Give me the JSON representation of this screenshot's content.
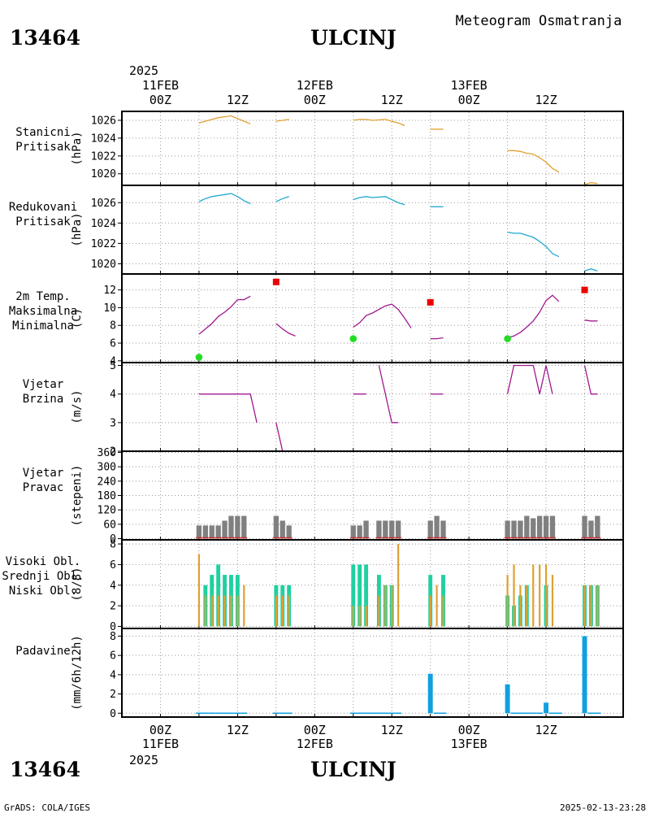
{
  "header": {
    "station_id": "13464",
    "station_name": "ULCINJ",
    "product": "Meteogram Osmatranja"
  },
  "footer": {
    "left_credit": "GrADS: COLA/IGES",
    "timestamp": "2025-02-13-23:28",
    "station_id": "13464",
    "station_name": "ULCINJ"
  },
  "time_axis": {
    "year": "2025",
    "range_hours": [
      -6,
      72
    ],
    "day_labels": [
      {
        "hour": 0,
        "label": "11FEB"
      },
      {
        "hour": 24,
        "label": "12FEB"
      },
      {
        "hour": 48,
        "label": "13FEB"
      }
    ],
    "hour_ticks": [
      {
        "hour": 0,
        "label": "00Z"
      },
      {
        "hour": 12,
        "label": "12Z"
      },
      {
        "hour": 24,
        "label": "00Z"
      },
      {
        "hour": 36,
        "label": "12Z"
      },
      {
        "hour": 48,
        "label": "00Z"
      },
      {
        "hour": 60,
        "label": "12Z"
      }
    ]
  },
  "colors": {
    "station_pressure": "#e0a030",
    "reduced_pressure": "#20a8d0",
    "temperature": "#a01890",
    "tmax_marker": "#ee0000",
    "tmin_marker": "#22dd22",
    "wind": "#a01890",
    "wind_dir_bar": "#808080",
    "wind_dir_base": "#cc3333",
    "high_cloud": "#20d0a0",
    "low_cloud": "#e0a030",
    "precip": "#10a0e0",
    "grid": "#999999"
  },
  "chart_data": [
    {
      "id": "station_pressure",
      "type": "line",
      "labels": [
        "Stanicni",
        "Pritisak"
      ],
      "ylabel": "(hPa)",
      "ylim": [
        1018.7,
        1027
      ],
      "yticks": [
        1020,
        1022,
        1024,
        1026
      ],
      "series": [
        {
          "segments": [
            [
              [
                6,
                1025.7
              ],
              [
                7,
                1025.9
              ],
              [
                8,
                1026.1
              ],
              [
                9,
                1026.3
              ],
              [
                10,
                1026.4
              ],
              [
                11,
                1026.5
              ],
              [
                12,
                1026.2
              ],
              [
                13,
                1025.9
              ],
              [
                14,
                1025.6
              ]
            ],
            [
              [
                18,
                1025.9
              ],
              [
                19,
                1026.0
              ],
              [
                20,
                1026.1
              ]
            ],
            [
              [
                30,
                1026.0
              ],
              [
                31,
                1026.1
              ],
              [
                32,
                1026.1
              ],
              [
                33,
                1026.0
              ],
              [
                35,
                1026.1
              ],
              [
                36,
                1025.9
              ],
              [
                37,
                1025.7
              ],
              [
                38,
                1025.4
              ]
            ],
            [
              [
                42,
                1025.0
              ],
              [
                43,
                1025.0
              ],
              [
                44,
                1025.0
              ]
            ],
            [
              [
                54,
                1022.6
              ],
              [
                55,
                1022.6
              ],
              [
                56,
                1022.5
              ],
              [
                57,
                1022.3
              ],
              [
                58,
                1022.2
              ],
              [
                59,
                1021.8
              ],
              [
                60,
                1021.3
              ],
              [
                61,
                1020.6
              ],
              [
                62,
                1020.2
              ]
            ],
            [
              [
                66,
                1018.8
              ],
              [
                67,
                1019.0
              ],
              [
                68,
                1018.9
              ]
            ]
          ]
        }
      ]
    },
    {
      "id": "reduced_pressure",
      "type": "line",
      "labels": [
        "Redukovani",
        "Pritisak"
      ],
      "ylabel": "(hPa)",
      "ylim": [
        1019,
        1027.7
      ],
      "yticks": [
        1020,
        1022,
        1024,
        1026
      ],
      "series": [
        {
          "segments": [
            [
              [
                6,
                1026.1
              ],
              [
                7,
                1026.4
              ],
              [
                8,
                1026.6
              ],
              [
                9,
                1026.7
              ],
              [
                10,
                1026.8
              ],
              [
                11,
                1026.9
              ],
              [
                12,
                1026.6
              ],
              [
                13,
                1026.2
              ],
              [
                14,
                1025.9
              ]
            ],
            [
              [
                18,
                1026.1
              ],
              [
                19,
                1026.4
              ],
              [
                20,
                1026.6
              ]
            ],
            [
              [
                30,
                1026.3
              ],
              [
                31,
                1026.5
              ],
              [
                32,
                1026.6
              ],
              [
                33,
                1026.5
              ],
              [
                35,
                1026.6
              ],
              [
                36,
                1026.3
              ],
              [
                37,
                1026.0
              ],
              [
                38,
                1025.8
              ]
            ],
            [
              [
                42,
                1025.6
              ],
              [
                43,
                1025.6
              ],
              [
                44,
                1025.6
              ]
            ],
            [
              [
                54,
                1023.1
              ],
              [
                55,
                1023.0
              ],
              [
                56,
                1023.0
              ],
              [
                57,
                1022.8
              ],
              [
                58,
                1022.6
              ],
              [
                59,
                1022.2
              ],
              [
                60,
                1021.7
              ],
              [
                61,
                1021.0
              ],
              [
                62,
                1020.7
              ]
            ],
            [
              [
                66,
                1019.3
              ],
              [
                67,
                1019.5
              ],
              [
                68,
                1019.3
              ]
            ]
          ]
        }
      ]
    },
    {
      "id": "temperature",
      "type": "line",
      "labels": [
        "2m Temp.",
        "Maksimalna",
        "Minimalna"
      ],
      "ylabel": "(C)",
      "ylim": [
        3.8,
        13.8
      ],
      "yticks": [
        4,
        6,
        8,
        10,
        12
      ],
      "series": [
        {
          "segments": [
            [
              [
                6,
                7.0
              ],
              [
                7,
                7.6
              ],
              [
                8,
                8.2
              ],
              [
                9,
                9.0
              ],
              [
                10,
                9.5
              ],
              [
                11,
                10.1
              ],
              [
                12,
                10.9
              ],
              [
                13,
                10.9
              ],
              [
                14,
                11.3
              ]
            ],
            [
              [
                18,
                8.2
              ],
              [
                19,
                7.6
              ],
              [
                20,
                7.1
              ],
              [
                21,
                6.8
              ]
            ],
            [
              [
                30,
                7.8
              ],
              [
                31,
                8.3
              ],
              [
                32,
                9.1
              ],
              [
                33,
                9.4
              ],
              [
                35,
                10.2
              ],
              [
                36,
                10.4
              ],
              [
                37,
                9.8
              ],
              [
                38,
                8.8
              ],
              [
                39,
                7.7
              ]
            ],
            [
              [
                42,
                6.5
              ],
              [
                43,
                6.5
              ],
              [
                44,
                6.6
              ]
            ],
            [
              [
                54,
                6.6
              ],
              [
                55,
                6.8
              ],
              [
                56,
                7.2
              ],
              [
                57,
                7.8
              ],
              [
                58,
                8.5
              ],
              [
                59,
                9.5
              ],
              [
                60,
                10.8
              ],
              [
                61,
                11.4
              ],
              [
                62,
                10.7
              ]
            ],
            [
              [
                66,
                8.6
              ],
              [
                67,
                8.5
              ],
              [
                68,
                8.5
              ]
            ]
          ]
        }
      ],
      "tmax": [
        [
          18,
          12.9
        ],
        [
          42,
          10.6
        ],
        [
          66,
          12.0
        ]
      ],
      "tmin": [
        [
          6,
          4.4
        ],
        [
          30,
          6.5
        ],
        [
          54,
          6.5
        ]
      ]
    },
    {
      "id": "wind_speed",
      "type": "line",
      "labels": [
        "Vjetar",
        "Brzina"
      ],
      "ylabel": "(m/s)",
      "ylim": [
        2,
        5.1
      ],
      "yticks": [
        2,
        3,
        4,
        5
      ],
      "series": [
        {
          "segments": [
            [
              [
                6,
                4
              ],
              [
                12,
                4
              ],
              [
                14,
                4
              ],
              [
                15,
                3
              ]
            ],
            [
              [
                18,
                3
              ],
              [
                19,
                2
              ],
              [
                20,
                2
              ]
            ],
            [
              [
                30,
                4
              ],
              [
                32,
                4
              ]
            ],
            [
              [
                34,
                5
              ],
              [
                36,
                3
              ],
              [
                37,
                3
              ]
            ],
            [
              [
                42,
                4
              ],
              [
                44,
                4
              ]
            ],
            [
              [
                54,
                4
              ],
              [
                55,
                5
              ],
              [
                58,
                5
              ],
              [
                59,
                4
              ],
              [
                60,
                5
              ],
              [
                61,
                4
              ]
            ],
            [
              [
                66,
                5
              ],
              [
                67,
                4
              ],
              [
                68,
                4
              ]
            ]
          ]
        }
      ]
    },
    {
      "id": "wind_direction",
      "type": "bar",
      "labels": [
        "Vjetar",
        "Pravac"
      ],
      "ylabel": "(stepeni)",
      "ylim": [
        -5,
        365
      ],
      "yticks": [
        0,
        60,
        120,
        180,
        240,
        300,
        360
      ],
      "bars": [
        [
          6,
          55
        ],
        [
          7,
          55
        ],
        [
          8,
          55
        ],
        [
          9,
          55
        ],
        [
          10,
          75
        ],
        [
          11,
          95
        ],
        [
          12,
          95
        ],
        [
          13,
          95
        ],
        [
          18,
          95
        ],
        [
          19,
          75
        ],
        [
          20,
          55
        ],
        [
          30,
          55
        ],
        [
          31,
          55
        ],
        [
          32,
          75
        ],
        [
          34,
          75
        ],
        [
          35,
          75
        ],
        [
          36,
          75
        ],
        [
          37,
          75
        ],
        [
          42,
          75
        ],
        [
          43,
          95
        ],
        [
          44,
          75
        ],
        [
          54,
          75
        ],
        [
          55,
          75
        ],
        [
          56,
          75
        ],
        [
          57,
          95
        ],
        [
          58,
          85
        ],
        [
          59,
          95
        ],
        [
          60,
          95
        ],
        [
          61,
          95
        ],
        [
          66,
          95
        ],
        [
          67,
          75
        ],
        [
          68,
          95
        ]
      ]
    },
    {
      "id": "clouds",
      "type": "bar",
      "labels": [
        "Visoki Obl.",
        "Srednji Obl.",
        "Niski Obl."
      ],
      "ylabel": "(8/8)",
      "ylim": [
        -0.2,
        8.4
      ],
      "yticks": [
        0,
        2,
        4,
        6,
        8
      ],
      "high": [
        [
          7,
          4
        ],
        [
          8,
          5
        ],
        [
          9,
          6
        ],
        [
          10,
          5
        ],
        [
          11,
          5
        ],
        [
          12,
          5
        ],
        [
          18,
          4
        ],
        [
          19,
          4
        ],
        [
          20,
          4
        ],
        [
          30,
          6
        ],
        [
          31,
          6
        ],
        [
          32,
          6
        ],
        [
          34,
          5
        ],
        [
          35,
          4
        ],
        [
          36,
          4
        ],
        [
          42,
          5
        ],
        [
          44,
          5
        ],
        [
          54,
          3
        ],
        [
          55,
          2
        ],
        [
          56,
          3
        ],
        [
          57,
          4
        ],
        [
          60,
          4
        ],
        [
          66,
          4
        ],
        [
          67,
          4
        ],
        [
          68,
          4
        ]
      ],
      "low": [
        [
          6,
          7
        ],
        [
          7,
          3
        ],
        [
          8,
          3
        ],
        [
          9,
          3
        ],
        [
          10,
          3
        ],
        [
          11,
          3
        ],
        [
          12,
          3
        ],
        [
          13,
          4
        ],
        [
          18,
          3
        ],
        [
          19,
          3
        ],
        [
          20,
          3
        ],
        [
          30,
          2
        ],
        [
          31,
          2
        ],
        [
          32,
          2
        ],
        [
          34,
          3
        ],
        [
          35,
          4
        ],
        [
          36,
          4
        ],
        [
          37,
          8
        ],
        [
          42,
          3
        ],
        [
          43,
          4
        ],
        [
          44,
          3
        ],
        [
          54,
          5
        ],
        [
          55,
          6
        ],
        [
          56,
          4
        ],
        [
          57,
          4
        ],
        [
          58,
          6
        ],
        [
          59,
          6
        ],
        [
          60,
          6
        ],
        [
          61,
          5
        ],
        [
          66,
          4
        ],
        [
          67,
          4
        ],
        [
          68,
          4
        ]
      ]
    },
    {
      "id": "precipitation",
      "type": "bar",
      "labels": [
        "Padavine"
      ],
      "ylabel": "(mm/6h/12h)",
      "ylim": [
        -0.4,
        8.8
      ],
      "yticks": [
        0,
        2,
        4,
        6,
        8
      ],
      "trace": [
        6,
        7,
        8,
        9,
        10,
        11,
        12,
        13,
        18,
        19,
        20,
        30,
        31,
        32,
        33,
        34,
        35,
        36,
        37,
        43,
        44,
        55,
        56,
        57,
        58,
        59,
        61,
        62,
        67,
        68
      ],
      "bars": [
        [
          42,
          4.1
        ],
        [
          54,
          3.0
        ],
        [
          60,
          1.1
        ],
        [
          66,
          8.0
        ]
      ]
    }
  ]
}
